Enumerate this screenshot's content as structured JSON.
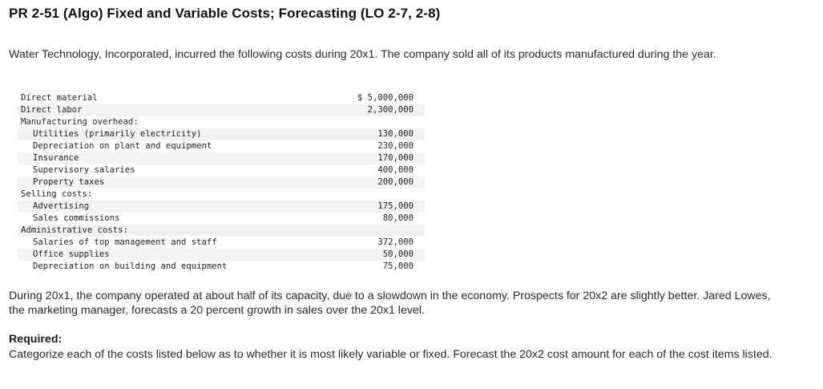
{
  "title": "PR 2-51 (Algo) Fixed and Variable Costs; Forecasting (LO 2-7, 2-8)",
  "intro": "Water Technology, Incorporated, incurred the following costs during 20x1. The company sold all of its products manufactured during the year.",
  "costs": [
    {
      "label": "Direct material",
      "amount": "$ 5,000,000",
      "indent": 0,
      "shaded": false
    },
    {
      "label": "Direct labor",
      "amount": "2,300,000",
      "indent": 0,
      "shaded": true
    },
    {
      "label": "Manufacturing overhead:",
      "amount": "",
      "indent": 0,
      "shaded": false
    },
    {
      "label": "Utilities (primarily electricity)",
      "amount": "130,000",
      "indent": 1,
      "shaded": true
    },
    {
      "label": "Depreciation on plant and equipment",
      "amount": "230,000",
      "indent": 1,
      "shaded": false
    },
    {
      "label": "Insurance",
      "amount": "170,000",
      "indent": 1,
      "shaded": true
    },
    {
      "label": "Supervisory salaries",
      "amount": "400,000",
      "indent": 1,
      "shaded": false
    },
    {
      "label": "Property taxes",
      "amount": "200,000",
      "indent": 1,
      "shaded": true
    },
    {
      "label": "Selling costs:",
      "amount": "",
      "indent": 0,
      "shaded": false
    },
    {
      "label": "Advertising",
      "amount": "175,000",
      "indent": 1,
      "shaded": true
    },
    {
      "label": "Sales commissions",
      "amount": "80,000",
      "indent": 1,
      "shaded": false
    },
    {
      "label": "Administrative costs:",
      "amount": "",
      "indent": 0,
      "shaded": true
    },
    {
      "label": "Salaries of top management and staff",
      "amount": "372,000",
      "indent": 1,
      "shaded": false
    },
    {
      "label": "Office supplies",
      "amount": "50,000",
      "indent": 1,
      "shaded": true
    },
    {
      "label": "Depreciation on building and equipment",
      "amount": "75,000",
      "indent": 1,
      "shaded": false
    }
  ],
  "paragraph2": "During 20x1, the company operated at about half of its capacity, due to a slowdown in the economy. Prospects for 20x2 are slightly better. Jared Lowes, the marketing manager, forecasts a 20 percent growth in sales over the 20x1 level.",
  "required_label": "Required:",
  "required_text": "Categorize each of the costs listed below as to whether it is most likely variable or fixed. Forecast the 20x2 cost amount for each of the cost items listed."
}
